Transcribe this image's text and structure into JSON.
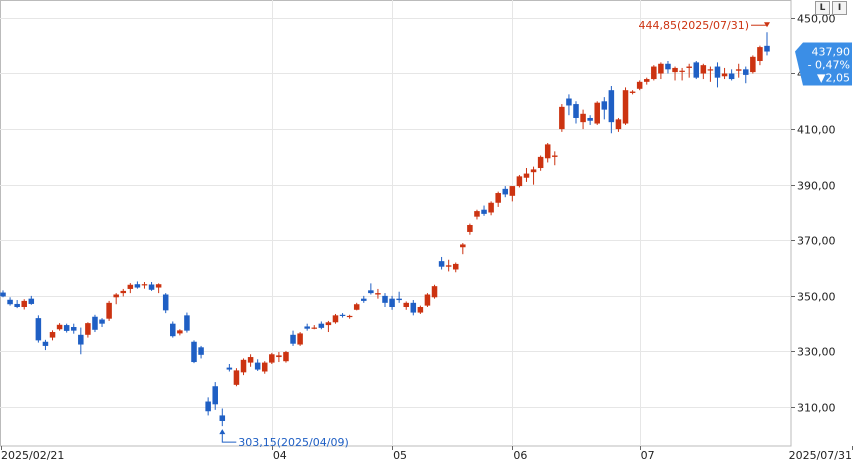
{
  "toolbar": {
    "log_button": "L",
    "linear_button": "I"
  },
  "chart_data": {
    "type": "candlestick",
    "y_ticks": [
      "450,00",
      "430,00",
      "410,00",
      "390,00",
      "370,00",
      "350,00",
      "330,00",
      "310,00"
    ],
    "y_tick_values": [
      450,
      430,
      410,
      390,
      370,
      350,
      330,
      310
    ],
    "ylim": [
      296,
      455
    ],
    "x_labels": [
      "2025/02/21",
      "04",
      "05",
      "06",
      "07",
      "2025/07/31"
    ],
    "grid": true,
    "colors": {
      "up": "#cc3311",
      "down": "#1f5fc4",
      "grid": "#e6e6e6",
      "badge": "#3b8ee6"
    },
    "high_annotation": "444,85(2025/07/31)",
    "low_annotation": "303,15(2025/04/09)",
    "last_price": "437,90",
    "change_pct": "- 0,47%",
    "change_abs": "▼2,05",
    "candles": [
      [
        351.2,
        352.0,
        349.5,
        349.8
      ],
      [
        348.6,
        349.5,
        346.5,
        347.0
      ],
      [
        347.1,
        348.5,
        345.6,
        346.0
      ],
      [
        346.0,
        348.8,
        345.1,
        348.2
      ],
      [
        349.0,
        350.0,
        346.8,
        347.1
      ],
      [
        342.0,
        343.0,
        333.2,
        334.0
      ],
      [
        333.5,
        334.2,
        330.5,
        332.0
      ],
      [
        335.0,
        337.6,
        334.0,
        337.0
      ],
      [
        338.0,
        340.2,
        337.5,
        339.6
      ],
      [
        339.5,
        340.0,
        336.8,
        337.4
      ],
      [
        338.8,
        340.0,
        336.4,
        337.5
      ],
      [
        336.0,
        338.6,
        329.0,
        332.5
      ],
      [
        336.0,
        340.5,
        335.0,
        340.2
      ],
      [
        342.5,
        343.2,
        337.0,
        337.8
      ],
      [
        341.5,
        342.0,
        338.8,
        340.0
      ],
      [
        341.8,
        348.2,
        341.0,
        347.5
      ],
      [
        349.5,
        351.0,
        347.0,
        350.5
      ],
      [
        351.0,
        352.5,
        349.8,
        351.8
      ],
      [
        352.5,
        354.6,
        351.0,
        354.0
      ],
      [
        354.2,
        355.2,
        352.6,
        353.0
      ],
      [
        354.0,
        355.0,
        352.6,
        354.2
      ],
      [
        354.1,
        355.0,
        351.8,
        352.2
      ],
      [
        353.0,
        354.5,
        351.0,
        354.2
      ],
      [
        350.5,
        351.0,
        343.8,
        344.8
      ],
      [
        340.0,
        340.8,
        335.0,
        335.5
      ],
      [
        336.5,
        338.0,
        335.8,
        337.6
      ],
      [
        343.0,
        344.0,
        336.8,
        337.5
      ],
      [
        333.5,
        334.0,
        325.8,
        326.2
      ],
      [
        331.5,
        332.0,
        327.5,
        328.8
      ],
      [
        312.0,
        313.5,
        307.0,
        308.5
      ],
      [
        317.5,
        319.0,
        309.0,
        311.0
      ],
      [
        307.0,
        309.5,
        303.15,
        305.0
      ],
      [
        324.2,
        325.5,
        322.8,
        323.5
      ],
      [
        318.0,
        324.0,
        317.5,
        323.2
      ],
      [
        322.5,
        327.5,
        321.5,
        327.0
      ],
      [
        326.0,
        329.0,
        324.5,
        328.0
      ],
      [
        326.0,
        327.2,
        323.0,
        323.5
      ],
      [
        322.8,
        326.5,
        322.0,
        326.0
      ],
      [
        326.0,
        329.5,
        325.5,
        329.0
      ],
      [
        328.0,
        329.8,
        326.2,
        328.6
      ],
      [
        326.5,
        330.2,
        326.0,
        329.8
      ],
      [
        336.0,
        337.5,
        332.0,
        332.8
      ],
      [
        332.5,
        337.0,
        332.0,
        336.5
      ],
      [
        339.0,
        340.0,
        337.5,
        338.2
      ],
      [
        338.5,
        339.5,
        338.0,
        338.6
      ],
      [
        340.0,
        340.8,
        338.0,
        338.5
      ],
      [
        339.5,
        341.0,
        337.0,
        340.5
      ],
      [
        340.5,
        343.5,
        340.0,
        343.0
      ],
      [
        343.2,
        343.8,
        342.2,
        343.0
      ],
      [
        342.5,
        343.2,
        341.8,
        342.8
      ],
      [
        345.0,
        347.5,
        344.8,
        347.0
      ],
      [
        349.0,
        350.0,
        347.5,
        348.2
      ],
      [
        352.0,
        354.5,
        350.5,
        351.0
      ],
      [
        350.5,
        352.5,
        349.0,
        351.0
      ],
      [
        350.0,
        351.0,
        346.0,
        347.5
      ],
      [
        349.0,
        350.0,
        345.0,
        346.0
      ],
      [
        349.0,
        351.5,
        347.5,
        348.5
      ],
      [
        346.0,
        348.0,
        345.0,
        347.5
      ],
      [
        347.5,
        348.5,
        343.0,
        344.0
      ],
      [
        344.0,
        346.5,
        343.5,
        346.0
      ],
      [
        346.5,
        351.0,
        346.0,
        350.5
      ],
      [
        349.5,
        354.0,
        349.0,
        353.5
      ],
      [
        362.5,
        364.0,
        359.5,
        360.5
      ],
      [
        360.5,
        363.0,
        358.8,
        361.0
      ],
      [
        359.5,
        362.0,
        358.5,
        361.5
      ],
      [
        367.5,
        369.0,
        365.0,
        368.5
      ],
      [
        373.0,
        376.0,
        372.0,
        375.5
      ],
      [
        378.5,
        381.0,
        377.5,
        380.5
      ],
      [
        381.0,
        382.5,
        378.8,
        379.5
      ],
      [
        380.0,
        384.0,
        379.0,
        383.5
      ],
      [
        383.5,
        387.5,
        382.0,
        387.0
      ],
      [
        388.5,
        389.5,
        385.5,
        386.5
      ],
      [
        386.0,
        389.5,
        384.0,
        389.5
      ],
      [
        389.5,
        393.5,
        389.0,
        393.0
      ],
      [
        392.5,
        396.0,
        391.0,
        394.0
      ],
      [
        394.5,
        396.5,
        390.0,
        395.5
      ],
      [
        396.0,
        400.5,
        395.0,
        400.0
      ],
      [
        399.5,
        405.0,
        398.0,
        404.5
      ],
      [
        400.0,
        402.0,
        397.0,
        400.5
      ],
      [
        410.0,
        419.0,
        409.0,
        418.0
      ],
      [
        421.0,
        422.5,
        415.0,
        418.5
      ],
      [
        419.0,
        420.0,
        412.0,
        414.0
      ],
      [
        412.5,
        417.0,
        410.0,
        415.5
      ],
      [
        414.0,
        415.0,
        411.5,
        413.0
      ],
      [
        412.0,
        420.0,
        411.5,
        419.5
      ],
      [
        420.0,
        421.5,
        413.5,
        417.0
      ],
      [
        424.0,
        425.5,
        408.5,
        412.5
      ],
      [
        410.0,
        414.0,
        409.0,
        413.5
      ],
      [
        412.0,
        425.0,
        411.5,
        424.0
      ],
      [
        423.0,
        424.0,
        422.5,
        423.5
      ],
      [
        424.5,
        427.5,
        424.0,
        427.0
      ],
      [
        427.0,
        428.5,
        426.0,
        428.0
      ],
      [
        428.0,
        433.0,
        427.5,
        432.5
      ],
      [
        430.0,
        434.0,
        428.0,
        433.5
      ],
      [
        433.5,
        434.5,
        430.0,
        431.5
      ],
      [
        430.5,
        432.5,
        427.5,
        432.0
      ],
      [
        431.0,
        432.0,
        427.5,
        431.0
      ],
      [
        432.0,
        433.5,
        428.5,
        432.5
      ],
      [
        434.0,
        434.5,
        428.0,
        428.5
      ],
      [
        430.0,
        433.5,
        428.0,
        433.0
      ],
      [
        431.5,
        432.5,
        427.0,
        431.5
      ],
      [
        432.5,
        434.0,
        425.0,
        428.5
      ],
      [
        429.0,
        432.0,
        428.0,
        430.0
      ],
      [
        430.0,
        431.5,
        427.5,
        428.0
      ],
      [
        431.0,
        433.5,
        428.5,
        431.5
      ],
      [
        431.5,
        432.5,
        426.5,
        429.5
      ],
      [
        430.5,
        436.5,
        430.0,
        436.0
      ],
      [
        434.5,
        440.0,
        433.0,
        439.5
      ],
      [
        439.95,
        444.85,
        436.5,
        437.9
      ]
    ]
  }
}
